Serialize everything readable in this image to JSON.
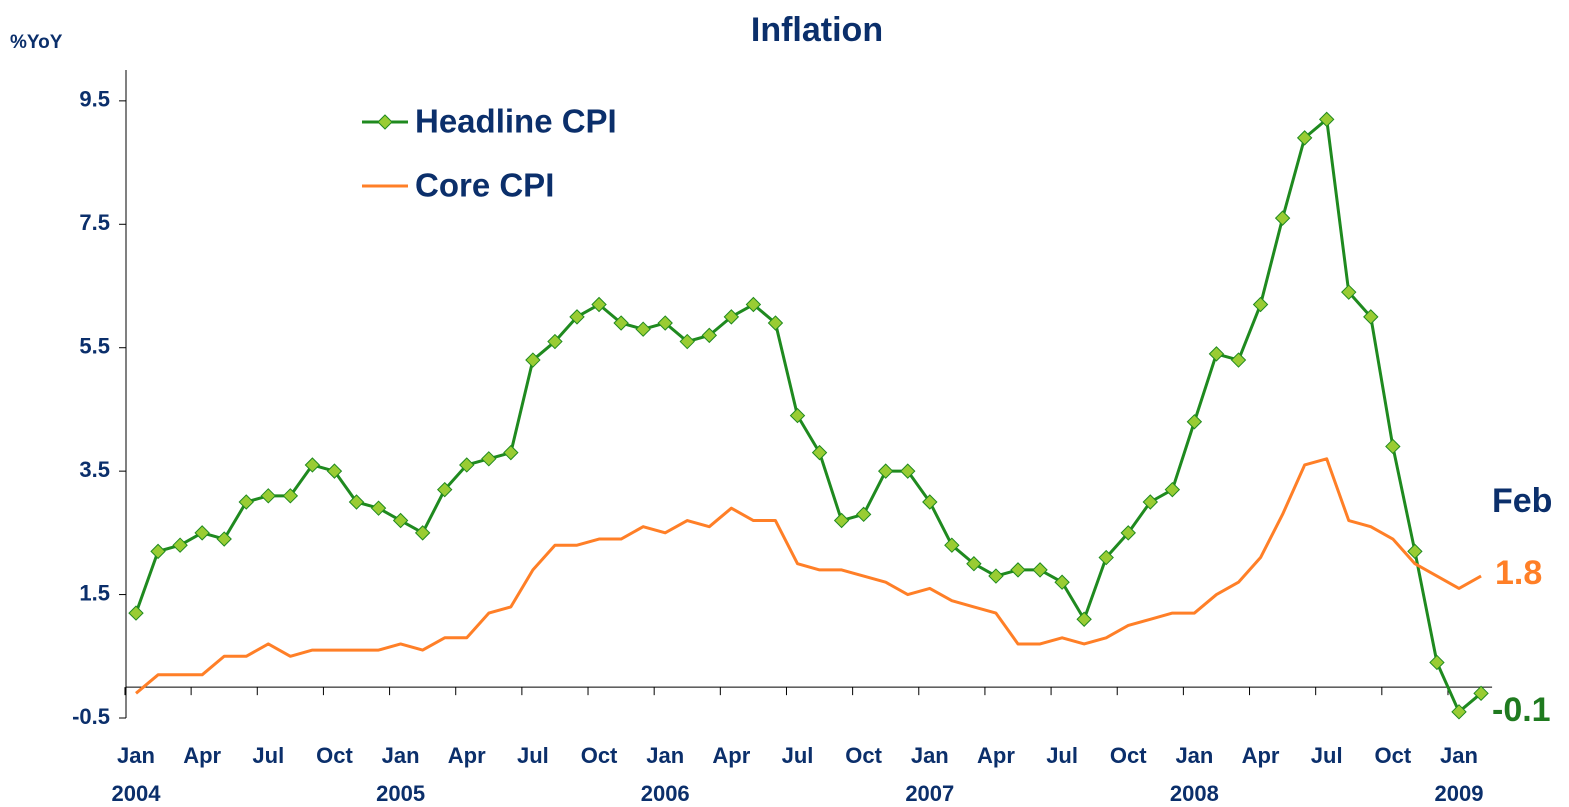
{
  "chart_data": {
    "type": "line",
    "title": "Inflation",
    "y_axis_label": "%YoY",
    "categories": [
      "Jan",
      null,
      null,
      "Apr",
      null,
      null,
      "Jul",
      null,
      null,
      "Oct",
      null,
      null,
      "Jan",
      null,
      null,
      "Apr",
      null,
      null,
      "Jul",
      null,
      null,
      "Oct",
      null,
      null,
      "Jan",
      null,
      null,
      "Apr",
      null,
      null,
      "Jul",
      null,
      null,
      "Oct",
      null,
      null,
      "Jan",
      null,
      null,
      "Apr",
      null,
      null,
      "Jul",
      null,
      null,
      "Oct",
      null,
      null,
      "Jan",
      null,
      null,
      "Apr",
      null,
      null,
      "Jul",
      null,
      null,
      "Oct",
      null,
      null,
      "Jan",
      null
    ],
    "year_labels": [
      "2004",
      "2005",
      "2006",
      "2007",
      "2008",
      "2009"
    ],
    "series": [
      {
        "name": "Headline CPI",
        "color": "#1f8a1f",
        "marker_color": "#99cc33",
        "values": [
          1.2,
          2.2,
          2.3,
          2.5,
          2.4,
          3.0,
          3.1,
          3.1,
          3.6,
          3.5,
          3.0,
          2.9,
          2.7,
          2.5,
          3.2,
          3.6,
          3.7,
          3.8,
          5.3,
          5.6,
          6.0,
          6.2,
          5.9,
          5.8,
          5.9,
          5.6,
          5.7,
          6.0,
          6.2,
          5.9,
          4.4,
          3.8,
          2.7,
          2.8,
          3.5,
          3.5,
          3.0,
          2.3,
          2.0,
          1.8,
          1.9,
          1.9,
          1.7,
          1.1,
          2.1,
          2.5,
          3.0,
          3.2,
          4.3,
          5.4,
          5.3,
          6.2,
          7.6,
          8.9,
          9.2,
          6.4,
          6.0,
          3.9,
          2.2,
          0.4,
          -0.4,
          -0.1
        ]
      },
      {
        "name": "Core CPI",
        "color": "#ff7f27",
        "values": [
          -0.1,
          0.2,
          0.2,
          0.2,
          0.5,
          0.5,
          0.7,
          0.5,
          0.6,
          0.6,
          0.6,
          0.6,
          0.7,
          0.6,
          0.8,
          0.8,
          1.2,
          1.3,
          1.9,
          2.3,
          2.3,
          2.4,
          2.4,
          2.6,
          2.5,
          2.7,
          2.6,
          2.9,
          2.7,
          2.7,
          2.0,
          1.9,
          1.9,
          1.8,
          1.7,
          1.5,
          1.6,
          1.4,
          1.3,
          1.2,
          0.7,
          0.7,
          0.8,
          0.7,
          0.8,
          1.0,
          1.1,
          1.2,
          1.2,
          1.5,
          1.7,
          2.1,
          2.8,
          3.6,
          3.7,
          2.7,
          2.6,
          2.4,
          2.0,
          1.8,
          1.6,
          1.8
        ]
      }
    ],
    "annotations": [
      {
        "text": "Feb",
        "color": "#0b2f6b"
      },
      {
        "text": "1.8",
        "color": "#ff7f27"
      },
      {
        "text": "-0.1",
        "color": "#1f7a1f"
      }
    ],
    "ylim": [
      -0.5,
      10
    ],
    "yticks": [
      -0.5,
      1.5,
      3.5,
      5.5,
      7.5,
      9.5
    ],
    "grid": false
  }
}
